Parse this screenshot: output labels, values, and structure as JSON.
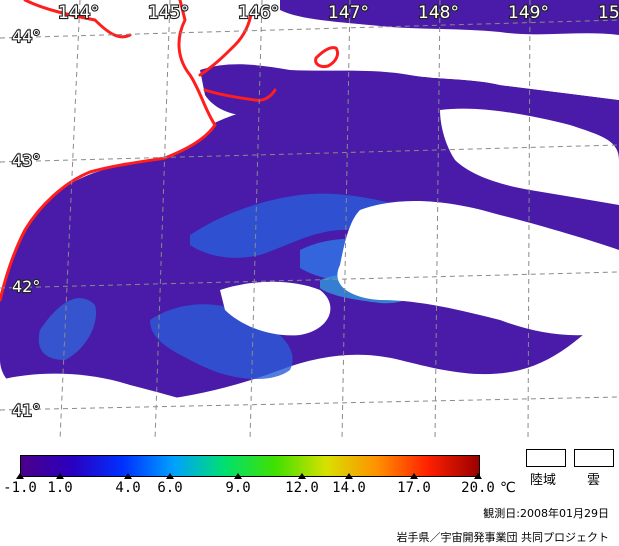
{
  "map": {
    "longitude_labels": [
      "144°",
      "145°",
      "146°",
      "147°",
      "148°",
      "149°",
      "15"
    ],
    "latitude_labels": [
      "44°",
      "43°",
      "42°",
      "41°"
    ],
    "ocean_color": "#4a1aa8",
    "warm_water_color": "#2a5bd8",
    "coastline_color": "#ff1e1e",
    "cloud_color": "#ffffff"
  },
  "legend": {
    "tick_labels": [
      "-1.0",
      "1.0",
      "4.0",
      "6.0",
      "9.0",
      "12.0",
      "14.0",
      "17.0",
      "20.0"
    ],
    "unit": "℃",
    "colorbar_colors": [
      "#4b008a",
      "#2a00c0",
      "#0030ff",
      "#00a0ff",
      "#00e070",
      "#40e000",
      "#d8e000",
      "#ff9000",
      "#ff2000",
      "#9a0000"
    ],
    "land_key_label": "陸域",
    "cloud_key_label": "雲"
  },
  "footer": {
    "observation_date": "観測日:2008年01月29日",
    "credit": "岩手県／宇宙開発事業団 共同プロジェクト"
  }
}
